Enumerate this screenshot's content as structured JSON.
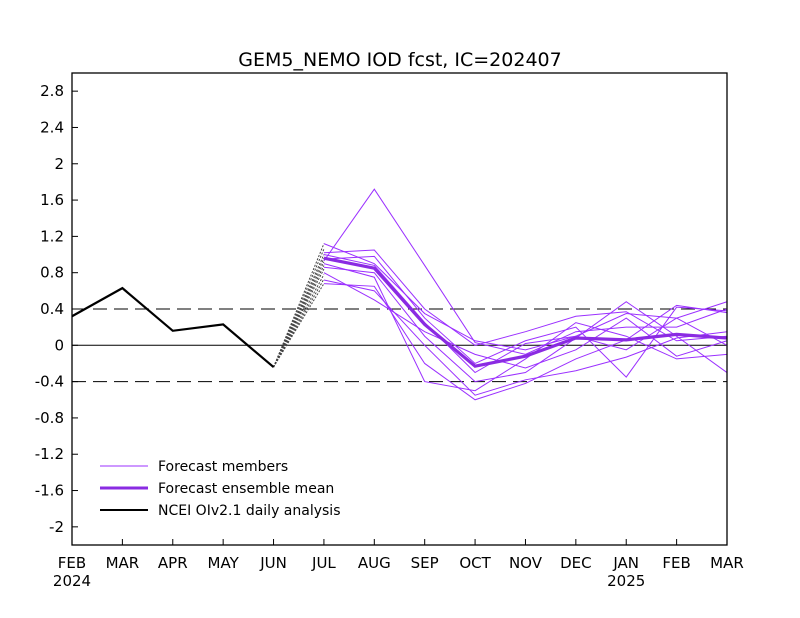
{
  "chart_data": {
    "type": "line",
    "title": "GEM5_NEMO IOD fcst, IC=202407",
    "xlabel": "",
    "ylabel": "",
    "x_tick_labels": [
      "FEB",
      "MAR",
      "APR",
      "MAY",
      "JUN",
      "JUL",
      "AUG",
      "SEP",
      "OCT",
      "NOV",
      "DEC",
      "JAN",
      "FEB",
      "MAR"
    ],
    "year_labels": [
      {
        "at_index": 0,
        "label": "2024"
      },
      {
        "at_index": 11,
        "label": "2025"
      }
    ],
    "y_tick_labels": [
      "2.8",
      "2.4",
      "2",
      "1.6",
      "1.2",
      "0.8",
      "0.4",
      "0",
      "-0.4",
      "-0.8",
      "-1.2",
      "-1.6",
      "-2"
    ],
    "y_ticks": [
      2.8,
      2.4,
      2.0,
      1.6,
      1.2,
      0.8,
      0.4,
      0.0,
      -0.4,
      -0.8,
      -1.2,
      -1.6,
      -2.0
    ],
    "ylim": [
      -2.2,
      3.0
    ],
    "xlim": [
      0,
      13
    ],
    "grid": false,
    "reference_lines": [
      {
        "y": 0.4,
        "style": "dashed"
      },
      {
        "y": 0.0,
        "style": "solid"
      },
      {
        "y": -0.4,
        "style": "dashed"
      }
    ],
    "legend": {
      "placement": "bottom-left",
      "entries": [
        {
          "label": "Forecast members",
          "color": "#9b30ff",
          "width": 1
        },
        {
          "label": "Forecast ensemble mean",
          "color": "#8a2be2",
          "width": 3
        },
        {
          "label": "NCEI OIv2.1 daily analysis",
          "color": "#000000",
          "width": 2
        }
      ]
    },
    "colors": {
      "members": "#9b30ff",
      "mean": "#8a2be2",
      "observed": "#000000",
      "daily": "#444444"
    },
    "observed": {
      "name": "NCEI OIv2.1 daily analysis",
      "x": [
        0,
        1,
        2,
        3,
        4
      ],
      "values": [
        0.32,
        0.63,
        0.16,
        0.23,
        -0.24
      ]
    },
    "daily_fan": {
      "x_start": 4,
      "y_start": -0.24,
      "x_end": 5,
      "y_ends": [
        1.12,
        1.06,
        1.0,
        0.96,
        0.92,
        0.88,
        0.84,
        0.78,
        0.73,
        0.68
      ]
    },
    "members": {
      "name": "Forecast members",
      "x": [
        5,
        6,
        7,
        8,
        9,
        10,
        11,
        12,
        13
      ],
      "series": [
        {
          "values": [
            1.12,
            0.9,
            0.35,
            0.05,
            -0.05,
            0.1,
            0.35,
            0.3,
            0.48
          ]
        },
        {
          "values": [
            0.93,
            1.72,
            0.88,
            0.03,
            -0.1,
            0.15,
            0.2,
            0.2,
            0.4
          ]
        },
        {
          "values": [
            1.02,
            1.05,
            0.4,
            0.0,
            0.15,
            0.32,
            0.37,
            0.05,
            0.1
          ]
        },
        {
          "values": [
            0.86,
            0.8,
            0.1,
            -0.4,
            -0.3,
            0.08,
            0.48,
            0.1,
            -0.3
          ]
        },
        {
          "values": [
            0.95,
            0.98,
            0.3,
            -0.2,
            0.05,
            0.2,
            -0.35,
            0.42,
            0.38
          ]
        },
        {
          "values": [
            0.72,
            0.6,
            0.0,
            -0.55,
            -0.38,
            -0.28,
            -0.13,
            0.08,
            0.15
          ]
        },
        {
          "values": [
            0.68,
            0.65,
            -0.2,
            -0.6,
            -0.42,
            -0.15,
            0.06,
            0.44,
            0.36
          ]
        },
        {
          "values": [
            0.9,
            0.75,
            -0.4,
            -0.5,
            -0.15,
            0.25,
            0.1,
            -0.15,
            -0.1
          ]
        },
        {
          "values": [
            1.0,
            0.88,
            0.25,
            -0.3,
            0.02,
            0.1,
            -0.05,
            0.3,
            0.0
          ]
        },
        {
          "values": [
            0.8,
            0.5,
            0.15,
            -0.1,
            -0.25,
            -0.05,
            0.3,
            -0.12,
            0.05
          ]
        }
      ]
    },
    "mean": {
      "name": "Forecast ensemble mean",
      "x": [
        5,
        6,
        7,
        8,
        9,
        10,
        11,
        12,
        13
      ],
      "values": [
        0.96,
        0.85,
        0.23,
        -0.23,
        -0.12,
        0.08,
        0.06,
        0.12,
        0.08
      ]
    }
  }
}
